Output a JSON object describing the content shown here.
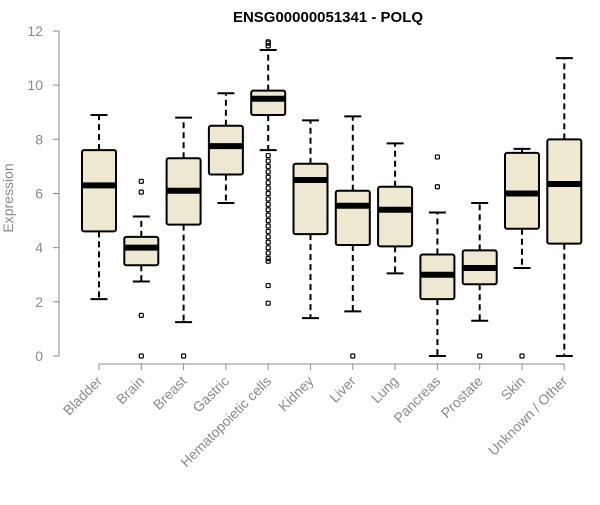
{
  "chart_data": {
    "type": "boxplot",
    "title": "ENSG00000051341 - POLQ",
    "xlabel": "",
    "ylabel": "Expression",
    "ylim": [
      0,
      12
    ],
    "yticks": [
      "0",
      "2",
      "4",
      "6",
      "8",
      "10",
      "12"
    ],
    "box_color": "#efe8d0",
    "categories": [
      "Bladder",
      "Brain",
      "Breast",
      "Gastric",
      "Hematopoietic cells",
      "Kidney",
      "Liver",
      "Lung",
      "Pancreas",
      "Prostate",
      "Skin",
      "Unknown / Other"
    ],
    "series": [
      {
        "name": "Bladder",
        "min": 2.1,
        "q1": 4.6,
        "median": 6.3,
        "q3": 7.6,
        "max": 8.9,
        "outliers": []
      },
      {
        "name": "Brain",
        "min": 2.75,
        "q1": 3.35,
        "median": 4.0,
        "q3": 4.4,
        "max": 5.15,
        "outliers": [
          6.05,
          6.45,
          1.5,
          0.0
        ]
      },
      {
        "name": "Breast",
        "min": 1.25,
        "q1": 4.85,
        "median": 6.1,
        "q3": 7.3,
        "max": 8.8,
        "outliers": [
          0.0
        ]
      },
      {
        "name": "Gastric",
        "min": 5.65,
        "q1": 6.7,
        "median": 7.75,
        "q3": 8.5,
        "max": 9.7,
        "outliers": []
      },
      {
        "name": "Hematopoietic cells",
        "min": 7.6,
        "q1": 8.9,
        "median": 9.5,
        "q3": 9.8,
        "max": 11.3,
        "outliers": [
          11.45,
          11.55,
          11.6,
          7.4,
          7.2,
          7.0,
          6.8,
          6.6,
          6.4,
          6.2,
          6.0,
          5.8,
          5.6,
          5.4,
          5.2,
          5.0,
          4.8,
          4.6,
          4.4,
          4.2,
          4.0,
          3.8,
          3.6,
          3.5,
          2.6,
          1.95
        ]
      },
      {
        "name": "Kidney",
        "min": 1.4,
        "q1": 4.5,
        "median": 6.5,
        "q3": 7.1,
        "max": 8.7,
        "outliers": []
      },
      {
        "name": "Liver",
        "min": 1.65,
        "q1": 4.1,
        "median": 5.55,
        "q3": 6.1,
        "max": 8.85,
        "outliers": [
          0.0
        ]
      },
      {
        "name": "Lung",
        "min": 3.05,
        "q1": 4.05,
        "median": 5.4,
        "q3": 6.25,
        "max": 7.85,
        "outliers": []
      },
      {
        "name": "Pancreas",
        "min": 0.0,
        "q1": 2.1,
        "median": 3.0,
        "q3": 3.75,
        "max": 5.3,
        "outliers": [
          6.25,
          7.35
        ]
      },
      {
        "name": "Prostate",
        "min": 1.3,
        "q1": 2.65,
        "median": 3.25,
        "q3": 3.9,
        "max": 5.65,
        "outliers": [
          0.0
        ]
      },
      {
        "name": "Skin",
        "min": 3.25,
        "q1": 4.7,
        "median": 6.0,
        "q3": 7.5,
        "max": 7.65,
        "outliers": [
          0.0
        ]
      },
      {
        "name": "Unknown / Other",
        "min": 0.0,
        "q1": 4.15,
        "median": 6.35,
        "q3": 8.0,
        "max": 11.0,
        "outliers": []
      }
    ]
  }
}
